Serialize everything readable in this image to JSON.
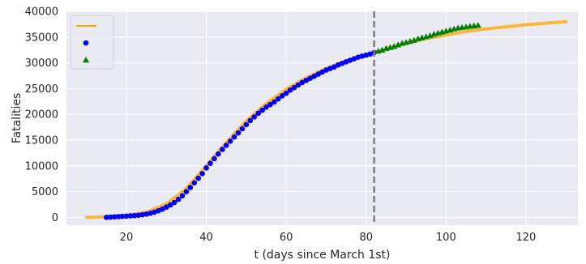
{
  "chart_data": {
    "type": "line",
    "title": "",
    "xlabel": "t (days since March 1st)",
    "ylabel": "Fatalities",
    "xlim": [
      5,
      133
    ],
    "ylim": [
      -1500,
      40000
    ],
    "xticks": [
      20,
      40,
      60,
      80,
      100,
      120
    ],
    "yticks": [
      0,
      5000,
      10000,
      15000,
      20000,
      25000,
      30000,
      35000,
      40000
    ],
    "grid": true,
    "background_color": "#eaeaf2",
    "legend": {
      "placement": "top-left",
      "entries": [
        "",
        "",
        ""
      ]
    },
    "vertical_line": {
      "x": 82,
      "style": "dashed",
      "color": "#7f7f7f"
    },
    "series": [
      {
        "marker": "line",
        "color": "#ffa500",
        "x": [
          10,
          15,
          20,
          25,
          30,
          35,
          40,
          45,
          50,
          55,
          60,
          65,
          70,
          75,
          80,
          82,
          85,
          90,
          95,
          100,
          105,
          110,
          115,
          120,
          125,
          130
        ],
        "y": [
          0,
          100,
          400,
          1000,
          2600,
          5600,
          10000,
          14500,
          18700,
          22100,
          24900,
          27100,
          28900,
          30400,
          31600,
          32000,
          32700,
          33800,
          34700,
          35400,
          36100,
          36600,
          37000,
          37400,
          37700,
          38000
        ]
      },
      {
        "marker": "circle",
        "color": "#0000ff",
        "x": [
          15,
          16,
          17,
          18,
          19,
          20,
          21,
          22,
          23,
          24,
          25,
          26,
          27,
          28,
          29,
          30,
          31,
          32,
          33,
          34,
          35,
          36,
          37,
          38,
          39,
          40,
          41,
          42,
          43,
          44,
          45,
          46,
          47,
          48,
          49,
          50,
          51,
          52,
          53,
          54,
          55,
          56,
          57,
          58,
          59,
          60,
          61,
          62,
          63,
          64,
          65,
          66,
          67,
          68,
          69,
          70,
          71,
          72,
          73,
          74,
          75,
          76,
          77,
          78,
          79,
          80,
          81,
          82
        ],
        "y": [
          0,
          50,
          100,
          150,
          200,
          250,
          300,
          350,
          420,
          520,
          640,
          800,
          1000,
          1300,
          1600,
          2000,
          2400,
          2900,
          3500,
          4200,
          5000,
          5800,
          6700,
          7600,
          8500,
          9600,
          10500,
          11400,
          12300,
          13200,
          14000,
          14800,
          15600,
          16400,
          17200,
          18000,
          18800,
          19500,
          20200,
          20800,
          21400,
          21900,
          22400,
          23000,
          23600,
          24100,
          24700,
          25200,
          25700,
          26200,
          26600,
          27000,
          27400,
          27800,
          28200,
          28600,
          28900,
          29200,
          29600,
          29900,
          30200,
          30500,
          30800,
          31100,
          31300,
          31500,
          31700,
          32000
        ]
      },
      {
        "marker": "triangle",
        "color": "#008000",
        "x": [
          83,
          84,
          85,
          86,
          87,
          88,
          89,
          90,
          91,
          92,
          93,
          94,
          95,
          96,
          97,
          98,
          99,
          100,
          101,
          102,
          103,
          104,
          105,
          106,
          107,
          108
        ],
        "y": [
          32300,
          32500,
          32800,
          33000,
          33200,
          33500,
          33800,
          34000,
          34200,
          34400,
          34700,
          34900,
          35100,
          35300,
          35600,
          35800,
          36000,
          36200,
          36400,
          36600,
          36800,
          36900,
          37000,
          37100,
          37200,
          37300
        ]
      }
    ]
  }
}
